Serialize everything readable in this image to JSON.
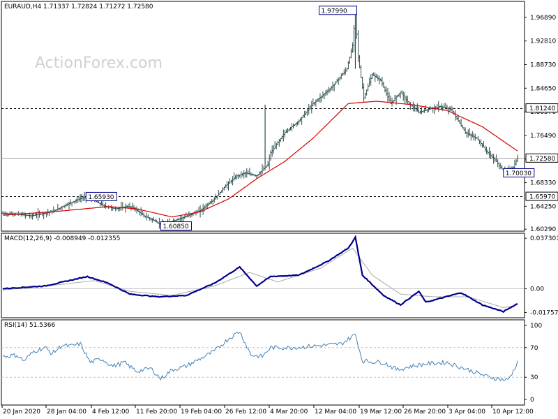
{
  "chart_data": [
    {
      "type": "candlestick",
      "title": "EURAUD,H4  1.71337 1.72824 1.71272 1.72580",
      "watermark": "ActionForex.com",
      "y_ticks": [
        "1.96890",
        "1.92810",
        "1.88730",
        "1.84650",
        "1.80570",
        "1.76490",
        "1.72410",
        "1.68330",
        "1.64250",
        "1.60290"
      ],
      "ylim": [
        1.5995,
        1.9965
      ],
      "highlighted_levels": [
        {
          "label": "1.81240",
          "value": 1.8124,
          "style": "dashed"
        },
        {
          "label": "1.72580",
          "value": 1.7258,
          "style": "solid-gray"
        },
        {
          "label": "1.65970",
          "value": 1.6597,
          "style": "dashed"
        }
      ],
      "annotations": [
        {
          "label": "1.97990",
          "value": 1.9799
        },
        {
          "label": "1.65930",
          "value": 1.6593
        },
        {
          "label": "1.60850",
          "value": 1.6085
        },
        {
          "label": "1.70030",
          "value": 1.7003
        }
      ],
      "price_path": [
        [
          0,
          1.63
        ],
        [
          10,
          1.629
        ],
        [
          20,
          1.626
        ],
        [
          35,
          1.633
        ],
        [
          45,
          1.645
        ],
        [
          55,
          1.656
        ],
        [
          60,
          1.6593
        ],
        [
          65,
          1.652
        ],
        [
          72,
          1.643
        ],
        [
          80,
          1.638
        ],
        [
          88,
          1.642
        ],
        [
          92,
          1.641
        ],
        [
          100,
          1.626
        ],
        [
          108,
          1.617
        ],
        [
          113,
          1.6085
        ],
        [
          118,
          1.615
        ],
        [
          128,
          1.623
        ],
        [
          140,
          1.635
        ],
        [
          150,
          1.655
        ],
        [
          158,
          1.678
        ],
        [
          166,
          1.695
        ],
        [
          172,
          1.7
        ],
        [
          180,
          1.695
        ],
        [
          188,
          1.715
        ],
        [
          190,
          1.735
        ],
        [
          200,
          1.77
        ],
        [
          210,
          1.79
        ],
        [
          220,
          1.82
        ],
        [
          232,
          1.845
        ],
        [
          244,
          1.88
        ],
        [
          248,
          1.92
        ],
        [
          250,
          1.9799
        ],
        [
          252,
          1.9
        ],
        [
          256,
          1.83
        ],
        [
          262,
          1.87
        ],
        [
          268,
          1.86
        ],
        [
          275,
          1.82
        ],
        [
          282,
          1.84
        ],
        [
          288,
          1.82
        ],
        [
          295,
          1.805
        ],
        [
          302,
          1.81
        ],
        [
          310,
          1.815
        ],
        [
          318,
          1.81
        ],
        [
          328,
          1.77
        ],
        [
          336,
          1.76
        ],
        [
          344,
          1.735
        ],
        [
          350,
          1.72
        ],
        [
          356,
          1.7003
        ],
        [
          362,
          1.71
        ],
        [
          365,
          1.7258
        ]
      ],
      "series": [
        {
          "name": "EURAUD H4",
          "color": "#2f4f4f"
        },
        {
          "name": "MA",
          "color": "#d40000"
        }
      ],
      "ma_path": [
        [
          0,
          1.627
        ],
        [
          40,
          1.634
        ],
        [
          75,
          1.642
        ],
        [
          95,
          1.638
        ],
        [
          120,
          1.624
        ],
        [
          140,
          1.633
        ],
        [
          160,
          1.655
        ],
        [
          180,
          1.69
        ],
        [
          200,
          1.72
        ],
        [
          220,
          1.76
        ],
        [
          245,
          1.82
        ],
        [
          265,
          1.824
        ],
        [
          290,
          1.818
        ],
        [
          315,
          1.808
        ],
        [
          340,
          1.78
        ],
        [
          365,
          1.738
        ]
      ],
      "x_ticks": [
        "20 Jan 2020",
        "28 Jan 04:00",
        "4 Feb 12:00",
        "11 Feb 20:00",
        "19 Feb 04:00",
        "26 Feb 12:00",
        "4 Mar 20:00",
        "12 Mar 04:00",
        "19 Mar 12:00",
        "26 Mar 20:00",
        "3 Apr 04:00",
        "10 Apr 12:00"
      ]
    },
    {
      "type": "line",
      "title": "MACD(12,26,9) -0.008949 -0.012355",
      "y_ticks": [
        "0.037301",
        "0.00",
        "-0.017577"
      ],
      "ylim": [
        -0.0215,
        0.041
      ],
      "zero_line": 0,
      "series": [
        {
          "name": "MACD",
          "color": "#00008b"
        },
        {
          "name": "Signal",
          "color": "#a9a9a9"
        }
      ],
      "macd_path": [
        [
          0,
          0.0
        ],
        [
          30,
          0.002
        ],
        [
          60,
          0.009
        ],
        [
          75,
          0.004
        ],
        [
          90,
          -0.004
        ],
        [
          110,
          -0.006
        ],
        [
          130,
          -0.005
        ],
        [
          150,
          0.004
        ],
        [
          168,
          0.016
        ],
        [
          180,
          0.002
        ],
        [
          190,
          0.009
        ],
        [
          210,
          0.01
        ],
        [
          230,
          0.02
        ],
        [
          245,
          0.03
        ],
        [
          250,
          0.038
        ],
        [
          255,
          0.01
        ],
        [
          270,
          -0.005
        ],
        [
          282,
          -0.012
        ],
        [
          295,
          -0.002
        ],
        [
          300,
          -0.01
        ],
        [
          325,
          -0.003
        ],
        [
          340,
          -0.012
        ],
        [
          355,
          -0.017
        ],
        [
          365,
          -0.011
        ]
      ],
      "signal_path": [
        [
          0,
          -0.001
        ],
        [
          40,
          0.003
        ],
        [
          65,
          0.006
        ],
        [
          90,
          -0.002
        ],
        [
          120,
          -0.005
        ],
        [
          150,
          0.002
        ],
        [
          175,
          0.012
        ],
        [
          195,
          0.005
        ],
        [
          225,
          0.015
        ],
        [
          248,
          0.03
        ],
        [
          262,
          0.01
        ],
        [
          282,
          -0.004
        ],
        [
          305,
          -0.006
        ],
        [
          330,
          -0.006
        ],
        [
          355,
          -0.014
        ],
        [
          365,
          -0.012
        ]
      ]
    },
    {
      "type": "line",
      "title": "RSI(14) 51.5366",
      "y_ticks": [
        "100",
        "70",
        "30",
        "0"
      ],
      "ylim": [
        0,
        100
      ],
      "levels": [
        70,
        30
      ],
      "series": [
        {
          "name": "RSI(14)",
          "color": "#4682b4"
        }
      ],
      "rsi_path": [
        [
          0,
          58
        ],
        [
          10,
          60
        ],
        [
          15,
          52
        ],
        [
          22,
          65
        ],
        [
          30,
          70
        ],
        [
          35,
          62
        ],
        [
          42,
          73
        ],
        [
          48,
          72
        ],
        [
          55,
          75
        ],
        [
          62,
          50
        ],
        [
          70,
          55
        ],
        [
          78,
          45
        ],
        [
          86,
          50
        ],
        [
          95,
          38
        ],
        [
          105,
          42
        ],
        [
          112,
          28
        ],
        [
          120,
          40
        ],
        [
          130,
          45
        ],
        [
          140,
          55
        ],
        [
          150,
          65
        ],
        [
          160,
          82
        ],
        [
          168,
          92
        ],
        [
          176,
          60
        ],
        [
          184,
          58
        ],
        [
          190,
          70
        ],
        [
          205,
          70
        ],
        [
          220,
          72
        ],
        [
          240,
          75
        ],
        [
          250,
          88
        ],
        [
          255,
          52
        ],
        [
          270,
          50
        ],
        [
          280,
          40
        ],
        [
          290,
          45
        ],
        [
          300,
          48
        ],
        [
          315,
          50
        ],
        [
          330,
          40
        ],
        [
          345,
          30
        ],
        [
          358,
          26
        ],
        [
          362,
          38
        ],
        [
          365,
          51.5
        ]
      ]
    }
  ]
}
